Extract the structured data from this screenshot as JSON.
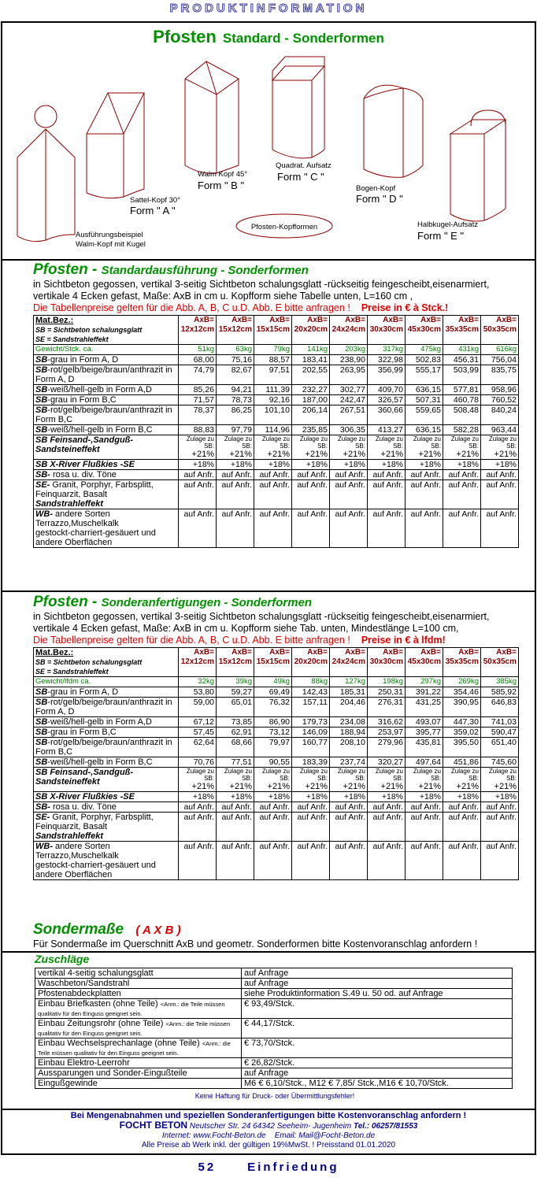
{
  "header": "PRODUKTINFORMATION",
  "title": {
    "main": "Pfosten",
    "sub": "Standard - Sonderformen"
  },
  "figure": {
    "example": [
      "Ausführungsbeispiel",
      "Walm-Kopf mit Kugel"
    ],
    "caption": "Pfosten-Kopfformen",
    "forms": [
      {
        "head": "Sattel-Kopf 30°",
        "form": "Form \" A \""
      },
      {
        "head": "Walm Kopf 45°",
        "form": "Form \" B \""
      },
      {
        "head": "Quadrat. Aufsatz",
        "form": "Form \" C \""
      },
      {
        "head": "Bogen-Kopf",
        "form": "Form \" D \""
      },
      {
        "head": "Halbkugel-Aufsatz",
        "form": "Form \" E \""
      }
    ]
  },
  "sections": [
    {
      "title": "Pfosten -",
      "subtitle": "Standardausführung - Sonderformen",
      "lines": [
        "in Sichtbeton gegossen, vertikal 3-seitig Sichtbeton schalungsglatt -rückseitig feingescheibt,eisenarmiert,",
        "vertikale 4 Ecken gefast,  Maße: AxB in cm  u. Kopfform siehe Tabelle unten,   L=160 cm ,"
      ],
      "note": "Die Tabellenpreise gelten für die Abb. A, B, C u.D.  Abb. E bitte anfragen !",
      "price": "Preise in €  à Stck.!",
      "table": {
        "head": [
          "Mat.Bez.:",
          "SB = Sichtbeton schalungsglatt",
          "SE = Sandstrahleffekt"
        ],
        "columns": [
          {
            "prefix": "AxB=",
            "size": "12x12cm"
          },
          {
            "prefix": "AxB=",
            "size": "15x12cm"
          },
          {
            "prefix": "AxB=",
            "size": "15x15cm"
          },
          {
            "prefix": "AxB=",
            "size": "20x20cm"
          },
          {
            "prefix": "AxB=",
            "size": "24x24cm"
          },
          {
            "prefix": "AxB=",
            "size": "30x30cm"
          },
          {
            "prefix": "AxB=",
            "size": "45x30cm"
          },
          {
            "prefix": "AxB=",
            "size": "35x35cm"
          },
          {
            "prefix": "AxB=",
            "size": "50x35cm"
          }
        ],
        "rows": [
          {
            "rest": "Gewicht/Stck. ca.",
            "color": "#008000",
            "cells": [
              "51kg",
              "63kg",
              "79kg",
              "141kg",
              "203kg",
              "317kg",
              "475kg",
              "431kg",
              "616kg"
            ]
          },
          {
            "lead": "SB",
            "rest": "-grau in Form A, D",
            "cells": [
              "68,00",
              "75,16",
              "88,57",
              "183,41",
              "238,90",
              "322,98",
              "502,83",
              "456,31",
              "756,04"
            ]
          },
          {
            "lead": "SB",
            "rest": "-rot/gelb/beige/braun/anthrazit in Form A, D",
            "cells": [
              "74,79",
              "82,67",
              "97,51",
              "202,55",
              "263,95",
              "356,99",
              "555,17",
              "503,99",
              "835,75"
            ]
          },
          {
            "lead": "SB",
            "rest": "-weiß/hell-gelb in Form A,D",
            "cells": [
              "85,26",
              "94,21",
              "111,39",
              "232,27",
              "302,77",
              "409,70",
              "636,15",
              "577,81",
              "958,96"
            ]
          },
          {
            "lead": "SB",
            "rest": "-grau in Form B,C",
            "cells": [
              "71,57",
              "78,73",
              "92,16",
              "187,00",
              "242,47",
              "326,57",
              "507,31",
              "460,78",
              "760,52"
            ]
          },
          {
            "lead": "SB",
            "rest": "-rot/gelb/beige/braun/anthrazit in Form B,C",
            "cells": [
              "78,37",
              "86,25",
              "101,10",
              "206,14",
              "267,51",
              "360,66",
              "559,65",
              "508,48",
              "840,24"
            ]
          },
          {
            "lead": "SB",
            "rest": "-weiß/hell-gelb in Form  B,C",
            "cells": [
              "88,83",
              "97,79",
              "114,96",
              "235,85",
              "306,35",
              "413,27",
              "636,15",
              "582,28",
              "963,44"
            ]
          },
          {
            "lead": "SB Feinsand-,Sandguß-Sandsteineffekt",
            "cells": [
              {
                "note": "Zulage zu SB:",
                "value": "+21%"
              },
              {
                "note": "Zulage zu SB:",
                "value": "+21%"
              },
              {
                "note": "Zulage zu SB:",
                "value": "+21%"
              },
              {
                "note": "Zulage zu SB:",
                "value": "+21%"
              },
              {
                "note": "Zulage zu SB:",
                "value": "+21%"
              },
              {
                "note": "Zulage zu SB:",
                "value": "+21%"
              },
              {
                "note": "Zulage zu SB:",
                "value": "+21%"
              },
              {
                "note": "Zulage zu SB:",
                "value": "+21%"
              },
              {
                "note": "Zulage zu SB:",
                "value": "+21%"
              }
            ]
          },
          {
            "lead": "SB X-River Flußkies -SE",
            "cells": [
              "+18%",
              "+18%",
              "+18%",
              "+18%",
              "+18%",
              "+18%",
              "+18%",
              "+18%",
              "+18%"
            ]
          },
          {
            "lead": "SB-",
            "rest": " rosa u. div. Töne",
            "cells": [
              "auf Anfr.",
              "auf Anfr.",
              "auf Anfr.",
              "auf Anfr.",
              "auf Anfr.",
              "auf Anfr.",
              "auf Anfr.",
              "auf Anfr.",
              "auf Anfr."
            ]
          },
          {
            "lead": "SE-",
            "rest": " Granit, Porphyr, Farbsplitt, Feinquarzit, Basalt",
            "tail": "Sandstrahleffekt",
            "cells": [
              "auf Anfr.",
              "auf Anfr.",
              "auf Anfr.",
              "auf Anfr.",
              "auf Anfr.",
              "auf Anfr.",
              "auf Anfr.",
              "auf Anfr.",
              "auf Anfr."
            ]
          },
          {
            "lead": "WB-",
            "rest": " andere Sorten Terrazzo,Muschelkalk",
            "tail2": "gestockt-charriert-gesäuert und andere Oberflächen",
            "cells": [
              "auf Anfr.",
              "auf Anfr.",
              "auf Anfr.",
              "auf Anfr.",
              "auf Anfr.",
              "auf Anfr.",
              "auf Anfr.",
              "auf Anfr.",
              "auf Anfr."
            ]
          }
        ]
      }
    },
    {
      "title": "Pfosten -",
      "subtitle": "Sonderanfertigungen - Sonderformen",
      "lines": [
        "in Sichtbeton gegossen, vertikal 3-seitig Sichtbeton schalungsglatt -rückseitig feingescheibt,eisenarmiert,",
        "vertikale 4 Ecken gefast,  Maße: AxB in cm  u. Kopfform siehe Tab. unten,  Mindestlänge L=100 cm,"
      ],
      "note": "Die Tabellenpreise gelten für die Abb. A, B, C u.D.  Abb. E bitte anfragen !",
      "price": "Preise in € à lfdm!",
      "table": {
        "head": [
          "Mat.Bez.:",
          "SB = Sichtbeton schalungsglatt",
          "SE = Sandstrahleffekt"
        ],
        "columns": [
          {
            "prefix": "AxB=",
            "size": "12x12cm"
          },
          {
            "prefix": "AxB=",
            "size": "15x12cm"
          },
          {
            "prefix": "AxB=",
            "size": "15x15cm"
          },
          {
            "prefix": "AxB=",
            "size": "20x20cm"
          },
          {
            "prefix": "AxB=",
            "size": "24x24cm"
          },
          {
            "prefix": "AxB=",
            "size": "30x30cm"
          },
          {
            "prefix": "AxB=",
            "size": "45x30cm"
          },
          {
            "prefix": "AxB=",
            "size": "35x35cm"
          },
          {
            "prefix": "AxB=",
            "size": "50x35cm"
          }
        ],
        "rows": [
          {
            "rest": "Gewicht/lfdm ca.",
            "color": "#008000",
            "cells": [
              "32kg",
              "39kg",
              "49kg",
              "88kg",
              "127kg",
              "198kg",
              "297kg",
              "269kg",
              "385kg"
            ]
          },
          {
            "lead": "SB",
            "rest": "-grau in Form A, D",
            "cells": [
              "53,80",
              "59,27",
              "69,49",
              "142,43",
              "185,31",
              "250,31",
              "391,22",
              "354,46",
              "585,92"
            ]
          },
          {
            "lead": "SB",
            "rest": "-rot/gelb/beige/braun/anthrazit in Form A, D",
            "cells": [
              "59,00",
              "65,01",
              "76,32",
              "157,11",
              "204,46",
              "276,31",
              "431,25",
              "390,95",
              "646,83"
            ]
          },
          {
            "lead": "SB",
            "rest": "-weiß/hell-gelb in Form A,D",
            "cells": [
              "67,12",
              "73,85",
              "86,90",
              "179,73",
              "234,08",
              "316,62",
              "493,07",
              "447,30",
              "741,03"
            ]
          },
          {
            "lead": "SB",
            "rest": "-grau in Form B,C",
            "cells": [
              "57,45",
              "62,91",
              "73,12",
              "146,09",
              "188,94",
              "253,97",
              "395,77",
              "359,02",
              "590,47"
            ]
          },
          {
            "lead": "SB",
            "rest": "-rot/gelb/beige/braun/anthrazit in Form B,C",
            "cells": [
              "62,64",
              "68,66",
              "79,97",
              "160,77",
              "208,10",
              "279,96",
              "435,81",
              "395,50",
              "651,40"
            ]
          },
          {
            "lead": "SB",
            "rest": "-weiß/hell-gelb in Form  B,C",
            "cells": [
              "70,76",
              "77,51",
              "90,55",
              "183,39",
              "237,74",
              "320,27",
              "497,64",
              "451,86",
              "745,60"
            ]
          },
          {
            "lead": "SB Feinsand-,Sandguß-Sandsteineffekt",
            "cells": [
              {
                "note": "Zulage zu SB:",
                "value": "+21%"
              },
              {
                "note": "Zulage zu SB:",
                "value": "+21%"
              },
              {
                "note": "Zulage zu SB:",
                "value": "+21%"
              },
              {
                "note": "Zulage zu SB:",
                "value": "+21%"
              },
              {
                "note": "Zulage zu SB:",
                "value": "+21%"
              },
              {
                "note": "Zulage zu SB:",
                "value": "+21%"
              },
              {
                "note": "Zulage zu SB:",
                "value": "+21%"
              },
              {
                "note": "Zulage zu SB:",
                "value": "+21%"
              },
              {
                "note": "Zulage zu SB:",
                "value": "+21%"
              }
            ]
          },
          {
            "lead": "SB X-River Flußkies -SE",
            "cells": [
              "+18%",
              "+18%",
              "+18%",
              "+18%",
              "+18%",
              "+18%",
              "+18%",
              "+18%",
              "+18%"
            ]
          },
          {
            "lead": "SB-",
            "rest": " rosa u. div. Töne",
            "cells": [
              "auf Anfr.",
              "auf Anfr.",
              "auf Anfr.",
              "auf Anfr.",
              "auf Anfr.",
              "auf Anfr.",
              "auf Anfr.",
              "auf Anfr.",
              "auf Anfr."
            ]
          },
          {
            "lead": "SE-",
            "rest": " Granit, Porphyr, Farbsplitt, Feinquarzit, Basalt",
            "tail": "Sandstrahleffekt",
            "cells": [
              "auf Anfr.",
              "auf Anfr.",
              "auf Anfr.",
              "auf Anfr.",
              "auf Anfr.",
              "auf Anfr.",
              "auf Anfr.",
              "auf Anfr.",
              "auf Anfr."
            ]
          },
          {
            "lead": "WB-",
            "rest": " andere Sorten Terrazzo,Muschelkalk",
            "tail2": "gestockt-charriert-gesäuert und andere Oberflächen",
            "cells": [
              "auf Anfr.",
              "auf Anfr.",
              "auf Anfr.",
              "auf Anfr.",
              "auf Anfr.",
              "auf Anfr.",
              "auf Anfr.",
              "auf Anfr.",
              "auf Anfr."
            ]
          }
        ]
      }
    }
  ],
  "sondermasse": {
    "title": "Sondermaße",
    "sub": "( A X B )",
    "text": "Für Sondermaße im Querschnitt AxB und geometr. Sonderformen bitte Kostenvoranschlag anfordern !"
  },
  "zuschlaege": {
    "title": "Zuschläge",
    "rows": [
      {
        "label": "vertikal 4-seitig schalungsglatt",
        "value": "auf Anfrage"
      },
      {
        "label": "Waschbeton/Sandstrahl",
        "value": "auf Anfrage"
      },
      {
        "label": "Pfostenabdeckplatten",
        "value": "siehe Produktinformation S.49 u. 50 od. auf Anfrage"
      },
      {
        "label": "Einbau Briefkasten (ohne Teile)",
        "note": "<Anm.: die Teile müssen qualitativ für den Einguss geeignet sein.",
        "value": "€ 93,49/Stck."
      },
      {
        "label": "Einbau Zeitungsrohr (ohne Teile)",
        "note": "<Anm.: die Teile müssen qualitativ für den Einguss geeignet sein.",
        "value": "€ 44,17/Stck."
      },
      {
        "label": "Einbau Wechselsprechanlage (ohne Teile)",
        "note": "<Anm.: die Teile müssen qualitativ für den Einguss geeignet sein.",
        "value": "€ 73,70/Stck."
      },
      {
        "label": "Einbau Elektro-Leerrohr",
        "value": "€ 26,82/Stck."
      },
      {
        "label": "Aussparungen und Sonder-Eingußteile",
        "value": "auf Anfrage"
      },
      {
        "label": "Eingußgewinde",
        "value": "M6  € 6,10/Stck., M12  € 7,85/ Stck.,M16  € 10,70/Stck."
      }
    ],
    "disclaimer": "Keine Haftung für Druck- oder Übermittlungsfehler!"
  },
  "footer": {
    "request": "Bei Mengenabnahmen und speziellen Sonderanfertigungen bitte Kostenvoranschlag anfordern !",
    "company": "FOCHT BETON",
    "address": "Neutscher Str. 24   64342 Seeheim- Jugenheim",
    "phone": "Tel.: 06257/81553",
    "internet": "Internet: www.Focht-Beton.de",
    "email": "Email: Mail@Focht-Beton.de",
    "prices": "Alle Preise ab Werk inkl. der gültigen 19%MwSt. !    Preisstand 01.01.2020"
  },
  "page": {
    "number": "52",
    "chapter": "Einfriedung"
  }
}
